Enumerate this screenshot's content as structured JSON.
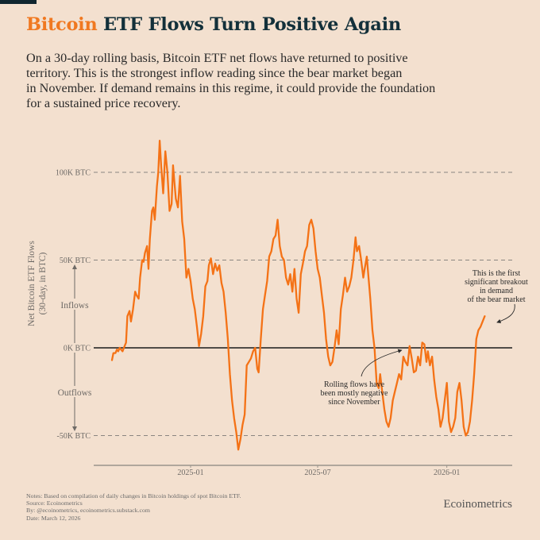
{
  "header": {
    "title_accent": "Bitcoin",
    "title_rest": " ETF Flows Turn Positive Again",
    "subtitle_lines": [
      "On a 30-day rolling basis, Bitcoin ETF net flows have returned to positive",
      "territory. This is the strongest inflow reading since the bear market began",
      "in November. If demand remains in this regime, it could provide the foundation",
      "for a sustained price recovery."
    ]
  },
  "colors": {
    "background": "#f3e0cf",
    "line": "#f47216",
    "title_dark": "#13303a",
    "title_accent": "#f07820",
    "zero_line": "#1b1b1b",
    "grid": "#8a8580",
    "axis": "#9a948c"
  },
  "chart_data": {
    "type": "line",
    "title": "Bitcoin ETF Flows Turn Positive Again",
    "ylabel": "Net Bitcoin ETF Flows (30-day, in BTC)",
    "ylabel_lines": [
      "Net Bitcoin ETF Flows",
      "(30-day, in BTC)"
    ],
    "xlabel": "",
    "ylim": [
      -60,
      120
    ],
    "yunit": "K BTC",
    "yticks": [
      {
        "value": 100,
        "label": "100K BTC"
      },
      {
        "value": 50,
        "label": "50K BTC"
      },
      {
        "value": 0,
        "label": "0K BTC"
      },
      {
        "value": -50,
        "label": "-50K BTC"
      }
    ],
    "xlim": [
      "2024-08-15",
      "2026-03-26"
    ],
    "xticks": [
      {
        "date": "2025-01-01",
        "label": "2025-01"
      },
      {
        "date": "2025-07-01",
        "label": "2025-07"
      },
      {
        "date": "2026-01-01",
        "label": "2026-01"
      }
    ],
    "grid": true,
    "direction_labels": {
      "up": "Inflows",
      "down": "Outflows"
    },
    "series": [
      {
        "name": "Net Bitcoin ETF Flows (30-day rolling)",
        "points": [
          [
            "2024-09-11",
            -7
          ],
          [
            "2024-09-13",
            -3
          ],
          [
            "2024-09-16",
            -3
          ],
          [
            "2024-09-18",
            -1
          ],
          [
            "2024-09-20",
            -2
          ],
          [
            "2024-09-22",
            0
          ],
          [
            "2024-09-24",
            -1
          ],
          [
            "2024-09-26",
            -2
          ],
          [
            "2024-09-28",
            0
          ],
          [
            "2024-10-01",
            3
          ],
          [
            "2024-10-03",
            18
          ],
          [
            "2024-10-06",
            21
          ],
          [
            "2024-10-08",
            15
          ],
          [
            "2024-10-11",
            22
          ],
          [
            "2024-10-14",
            32
          ],
          [
            "2024-10-16",
            30
          ],
          [
            "2024-10-19",
            28
          ],
          [
            "2024-10-21",
            40
          ],
          [
            "2024-10-24",
            50
          ],
          [
            "2024-10-26",
            49
          ],
          [
            "2024-10-28",
            54
          ],
          [
            "2024-10-31",
            58
          ],
          [
            "2024-11-02",
            45
          ],
          [
            "2024-11-04",
            62
          ],
          [
            "2024-11-07",
            78
          ],
          [
            "2024-11-09",
            80
          ],
          [
            "2024-11-11",
            73
          ],
          [
            "2024-11-14",
            92
          ],
          [
            "2024-11-16",
            100
          ],
          [
            "2024-11-18",
            118
          ],
          [
            "2024-11-20",
            104
          ],
          [
            "2024-11-23",
            88
          ],
          [
            "2024-11-26",
            112
          ],
          [
            "2024-11-29",
            100
          ],
          [
            "2024-12-02",
            78
          ],
          [
            "2024-12-05",
            82
          ],
          [
            "2024-12-07",
            104
          ],
          [
            "2024-12-09",
            94
          ],
          [
            "2024-12-11",
            85
          ],
          [
            "2024-12-14",
            80
          ],
          [
            "2024-12-17",
            98
          ],
          [
            "2024-12-20",
            72
          ],
          [
            "2024-12-23",
            62
          ],
          [
            "2024-12-26",
            40
          ],
          [
            "2024-12-29",
            45
          ],
          [
            "2025-01-01",
            38
          ],
          [
            "2025-01-04",
            28
          ],
          [
            "2025-01-07",
            22
          ],
          [
            "2025-01-10",
            12
          ],
          [
            "2025-01-13",
            1
          ],
          [
            "2025-01-16",
            8
          ],
          [
            "2025-01-19",
            18
          ],
          [
            "2025-01-22",
            35
          ],
          [
            "2025-01-25",
            38
          ],
          [
            "2025-01-27",
            47
          ],
          [
            "2025-01-30",
            51
          ],
          [
            "2025-02-02",
            42
          ],
          [
            "2025-02-05",
            48
          ],
          [
            "2025-02-08",
            44
          ],
          [
            "2025-02-11",
            47
          ],
          [
            "2025-02-14",
            37
          ],
          [
            "2025-02-17",
            32
          ],
          [
            "2025-02-20",
            20
          ],
          [
            "2025-02-23",
            5
          ],
          [
            "2025-02-26",
            -15
          ],
          [
            "2025-03-01",
            -30
          ],
          [
            "2025-03-04",
            -40
          ],
          [
            "2025-03-07",
            -48
          ],
          [
            "2025-03-10",
            -58
          ],
          [
            "2025-03-13",
            -52
          ],
          [
            "2025-03-16",
            -44
          ],
          [
            "2025-03-19",
            -38
          ],
          [
            "2025-03-22",
            -10
          ],
          [
            "2025-03-25",
            -8
          ],
          [
            "2025-03-28",
            -6
          ],
          [
            "2025-03-31",
            -2
          ],
          [
            "2025-04-03",
            0
          ],
          [
            "2025-04-06",
            -12
          ],
          [
            "2025-04-08",
            -14
          ],
          [
            "2025-04-11",
            5
          ],
          [
            "2025-04-14",
            22
          ],
          [
            "2025-04-17",
            30
          ],
          [
            "2025-04-20",
            38
          ],
          [
            "2025-04-23",
            52
          ],
          [
            "2025-04-26",
            55
          ],
          [
            "2025-04-29",
            62
          ],
          [
            "2025-05-02",
            64
          ],
          [
            "2025-05-05",
            73
          ],
          [
            "2025-05-08",
            58
          ],
          [
            "2025-05-11",
            52
          ],
          [
            "2025-05-14",
            50
          ],
          [
            "2025-05-17",
            40
          ],
          [
            "2025-05-20",
            36
          ],
          [
            "2025-05-23",
            42
          ],
          [
            "2025-05-26",
            32
          ],
          [
            "2025-05-29",
            45
          ],
          [
            "2025-06-01",
            28
          ],
          [
            "2025-06-04",
            20
          ],
          [
            "2025-06-07",
            42
          ],
          [
            "2025-06-10",
            48
          ],
          [
            "2025-06-13",
            55
          ],
          [
            "2025-06-16",
            58
          ],
          [
            "2025-06-19",
            70
          ],
          [
            "2025-06-22",
            73
          ],
          [
            "2025-06-25",
            68
          ],
          [
            "2025-06-28",
            55
          ],
          [
            "2025-07-01",
            45
          ],
          [
            "2025-07-04",
            40
          ],
          [
            "2025-07-07",
            30
          ],
          [
            "2025-07-10",
            20
          ],
          [
            "2025-07-13",
            5
          ],
          [
            "2025-07-16",
            -5
          ],
          [
            "2025-07-19",
            -10
          ],
          [
            "2025-07-22",
            -8
          ],
          [
            "2025-07-25",
            0
          ],
          [
            "2025-07-28",
            10
          ],
          [
            "2025-07-31",
            2
          ],
          [
            "2025-08-03",
            22
          ],
          [
            "2025-08-06",
            30
          ],
          [
            "2025-08-09",
            40
          ],
          [
            "2025-08-12",
            32
          ],
          [
            "2025-08-15",
            35
          ],
          [
            "2025-08-18",
            40
          ],
          [
            "2025-08-21",
            50
          ],
          [
            "2025-08-24",
            63
          ],
          [
            "2025-08-26",
            55
          ],
          [
            "2025-08-29",
            58
          ],
          [
            "2025-09-01",
            50
          ],
          [
            "2025-09-04",
            40
          ],
          [
            "2025-09-06",
            45
          ],
          [
            "2025-09-09",
            52
          ],
          [
            "2025-09-11",
            42
          ],
          [
            "2025-09-14",
            28
          ],
          [
            "2025-09-17",
            10
          ],
          [
            "2025-09-20",
            0
          ],
          [
            "2025-09-23",
            -20
          ],
          [
            "2025-09-26",
            -23
          ],
          [
            "2025-09-28",
            -15
          ],
          [
            "2025-10-01",
            -25
          ],
          [
            "2025-10-04",
            -35
          ],
          [
            "2025-10-07",
            -42
          ],
          [
            "2025-10-10",
            -45
          ],
          [
            "2025-10-13",
            -40
          ],
          [
            "2025-10-16",
            -30
          ],
          [
            "2025-10-19",
            -25
          ],
          [
            "2025-10-22",
            -20
          ],
          [
            "2025-10-25",
            -15
          ],
          [
            "2025-10-28",
            -18
          ],
          [
            "2025-10-31",
            -5
          ],
          [
            "2025-11-03",
            -8
          ],
          [
            "2025-11-06",
            -10
          ],
          [
            "2025-11-09",
            1
          ],
          [
            "2025-11-12",
            -6
          ],
          [
            "2025-11-15",
            -14
          ],
          [
            "2025-11-18",
            -13
          ],
          [
            "2025-11-21",
            -5
          ],
          [
            "2025-11-24",
            -10
          ],
          [
            "2025-11-27",
            3
          ],
          [
            "2025-11-30",
            2
          ],
          [
            "2025-12-03",
            -8
          ],
          [
            "2025-12-05",
            -2
          ],
          [
            "2025-12-08",
            -10
          ],
          [
            "2025-12-11",
            -5
          ],
          [
            "2025-12-14",
            -18
          ],
          [
            "2025-12-17",
            -28
          ],
          [
            "2025-12-20",
            -35
          ],
          [
            "2025-12-23",
            -45
          ],
          [
            "2025-12-26",
            -40
          ],
          [
            "2025-12-29",
            -30
          ],
          [
            "2026-01-01",
            -20
          ],
          [
            "2026-01-04",
            -42
          ],
          [
            "2026-01-07",
            -48
          ],
          [
            "2026-01-10",
            -45
          ],
          [
            "2026-01-13",
            -40
          ],
          [
            "2026-01-16",
            -25
          ],
          [
            "2026-01-19",
            -20
          ],
          [
            "2026-01-22",
            -30
          ],
          [
            "2026-01-25",
            -45
          ],
          [
            "2026-01-28",
            -50
          ],
          [
            "2026-01-31",
            -48
          ],
          [
            "2026-02-03",
            -42
          ],
          [
            "2026-02-06",
            -30
          ],
          [
            "2026-02-09",
            -15
          ],
          [
            "2026-02-12",
            5
          ],
          [
            "2026-02-15",
            10
          ],
          [
            "2026-02-18",
            12
          ],
          [
            "2026-02-21",
            15
          ],
          [
            "2026-02-24",
            18
          ]
        ]
      }
    ],
    "annotations": [
      {
        "text_lines": [
          "Rolling flows have",
          "been mostly negative",
          "since November"
        ],
        "points_to_date": "2025-11-01",
        "points_to_value": 0
      },
      {
        "text_lines": [
          "This is the first",
          "significant breakout",
          "in demand",
          "of the bear market"
        ],
        "points_to_date": "2026-03-08",
        "points_to_value": 15
      }
    ]
  },
  "footer": {
    "notes": [
      "Notes: Based on compilation of daily changes in Bitcoin holdings of spot Bitcoin ETF.",
      "Source: Ecoinometrics",
      "By: @ecoinometrics, ecoinometrics.substack.com",
      "Date: March 12, 2026"
    ],
    "brand": "Ecoinometrics"
  }
}
